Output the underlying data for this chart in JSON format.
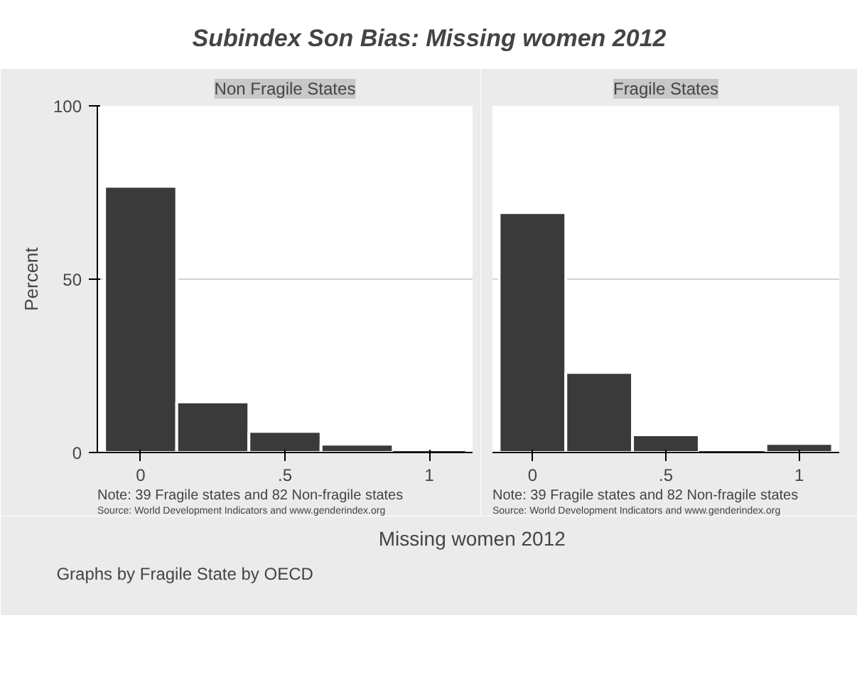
{
  "chart_data": [
    {
      "type": "histogram",
      "title": "Subindex Son Bias: Missing women 2012",
      "subtitle": "Non Fragile States",
      "xlabel": "Missing women 2012",
      "ylabel": "Percent",
      "bins": [
        -0.125,
        0.125,
        0.375,
        0.625,
        0.875,
        1.125
      ],
      "values": [
        76.8,
        14.6,
        6.1,
        2.4,
        0
      ],
      "color": "#3a3a3a",
      "xlim": [
        -0.15,
        1.15
      ],
      "xticks": [
        0,
        {
          "value": 0.5,
          "label": ".5"
        },
        1
      ],
      "ylim": [
        0,
        100
      ],
      "yticks": [
        0,
        50,
        100
      ],
      "grid": "y",
      "annotations": [
        "Note: 39 Fragile states and 82 Non-fragile states",
        "Source: World Development Indicators and www.genderindex.org",
        "Graphs by Fragile State by OECD"
      ]
    },
    {
      "type": "histogram",
      "subtitle": "Fragile States",
      "bins": [
        -0.125,
        0.125,
        0.375,
        0.625,
        0.875,
        1.125
      ],
      "values": [
        69.2,
        23.1,
        5.1,
        0,
        2.6
      ],
      "color": "#3a3a3a",
      "xlim": [
        -0.15,
        1.15
      ],
      "xticks": [
        0,
        {
          "value": 0.5,
          "label": ".5"
        },
        1
      ],
      "ylim": [
        0,
        100
      ],
      "yticks": [
        0,
        50,
        100
      ],
      "grid": "y",
      "tick_labels": "x",
      "annotations": [
        "Note: 39 Fragile states and 82 Non-fragile states",
        "Source: World Development Indicators and www.genderindex.org"
      ]
    }
  ]
}
